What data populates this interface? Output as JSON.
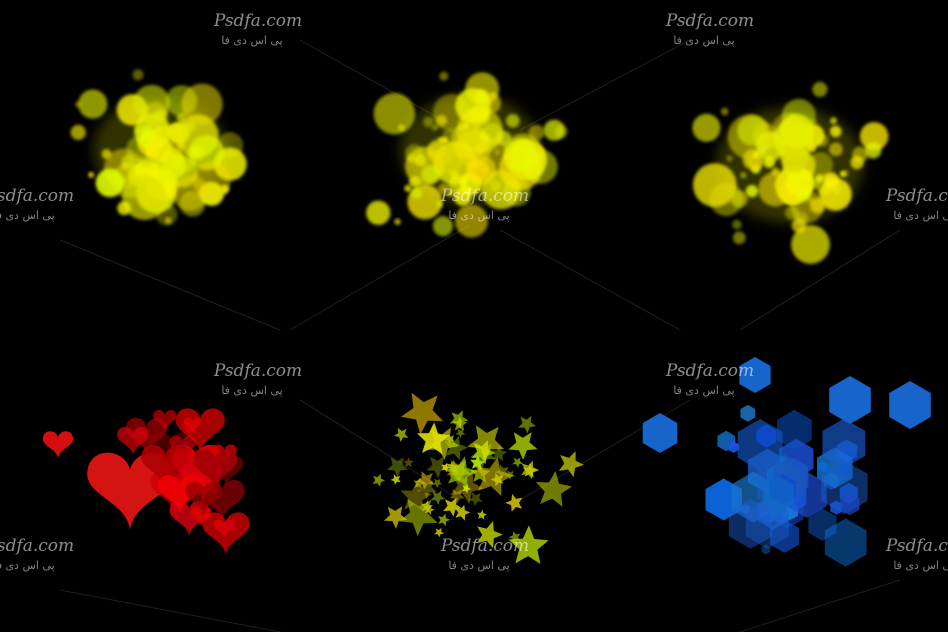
{
  "watermark": {
    "site": "Psdfa.com",
    "name": "پی اس دی فا"
  }
}
